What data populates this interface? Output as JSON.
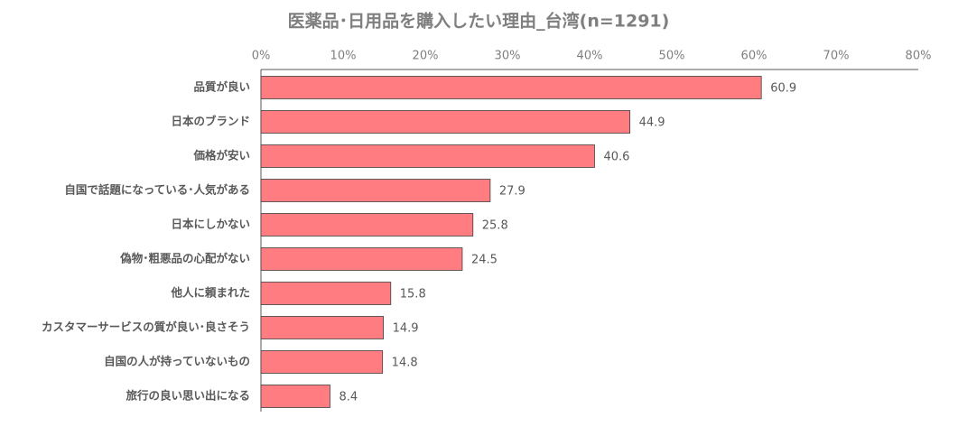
{
  "chart_data": {
    "type": "barh",
    "title": "医薬品･日用品を購入したい理由_台湾(n=1291)",
    "categories": [
      "品質が良い",
      "日本のブランド",
      "価格が安い",
      "自国で話題になっている･人気がある",
      "日本にしかない",
      "偽物･粗悪品の心配がない",
      "他人に頼まれた",
      "カスタマーサービスの質が良い･良さそう",
      "自国の人が持っていないもの",
      "旅行の良い思い出になる"
    ],
    "values": [
      60.9,
      44.9,
      40.6,
      27.9,
      25.8,
      24.5,
      15.8,
      14.9,
      14.8,
      8.4
    ],
    "color": "#ff7c80",
    "xlim": [
      0,
      80
    ],
    "xticks": [
      {
        "value": 0,
        "label": "0%"
      },
      {
        "value": 10,
        "label": "10%"
      },
      {
        "value": 20,
        "label": "20%"
      },
      {
        "value": 30,
        "label": "30%"
      },
      {
        "value": 40,
        "label": "40%"
      },
      {
        "value": 50,
        "label": "50%"
      },
      {
        "value": 60,
        "label": "60%"
      },
      {
        "value": 70,
        "label": "70%"
      },
      {
        "value": 80,
        "label": "80%"
      }
    ]
  }
}
